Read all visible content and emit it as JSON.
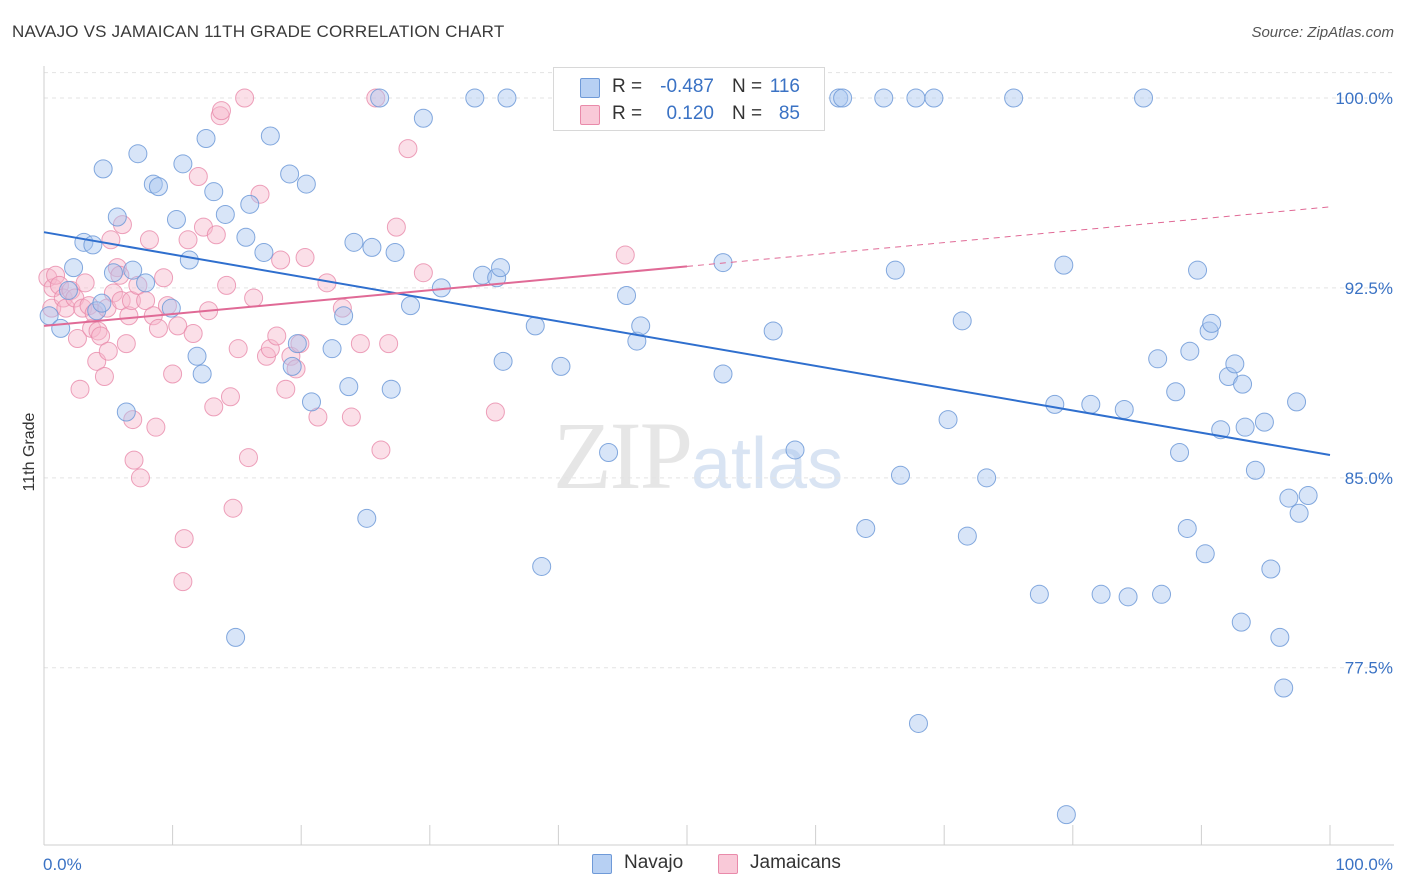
{
  "header": {
    "title": "NAVAJO VS JAMAICAN 11TH GRADE CORRELATION CHART",
    "source": "Source: ZipAtlas.com"
  },
  "watermark": {
    "zip": "ZIP",
    "atlas": "atlas"
  },
  "legend": {
    "navajo": {
      "r_label": "R =",
      "r_value": "-0.487",
      "n_label": "N =",
      "n_value": "116"
    },
    "jamaicans": {
      "r_label": "R =",
      "r_value": "0.120",
      "n_label": "N =",
      "n_value": "85"
    }
  },
  "bottom_legend": {
    "navajo": "Navajo",
    "jamaicans": "Jamaicans"
  },
  "colors": {
    "navajo_fill": "#a9c6f0",
    "navajo_stroke": "#6f9ad8",
    "navajo_line": "#2f6fce",
    "jamaicans_fill": "#f6b8cc",
    "jamaicans_stroke": "#e98aaa",
    "jamaicans_line": "#e06a96",
    "tick_text": "#3a72c4",
    "grid": "#e3e3e3"
  },
  "chart_data": {
    "type": "scatter",
    "title": "NAVAJO VS JAMAICAN 11TH GRADE CORRELATION CHART",
    "xlabel": "",
    "ylabel": "11th Grade",
    "xlim": [
      0,
      100
    ],
    "ylim": [
      70.5,
      101.5
    ],
    "x_tick_labels": [
      "0.0%",
      "100.0%"
    ],
    "y_ticks": [
      77.5,
      85.0,
      92.5,
      100.0
    ],
    "y_tick_labels": [
      "77.5%",
      "85.0%",
      "92.5%",
      "100.0%"
    ],
    "grid": true,
    "legend_position": "top-center",
    "series": [
      {
        "name": "Navajo",
        "r": -0.487,
        "n": 116,
        "trend": {
          "x0": 0,
          "y0": 94.7,
          "x1": 100,
          "y1": 85.9,
          "dashed_from": null
        },
        "points": [
          [
            0.4,
            91.4
          ],
          [
            1.3,
            90.9
          ],
          [
            1.9,
            92.4
          ],
          [
            2.3,
            93.3
          ],
          [
            3.1,
            94.3
          ],
          [
            3.8,
            94.2
          ],
          [
            4.1,
            91.6
          ],
          [
            4.5,
            91.9
          ],
          [
            4.6,
            97.2
          ],
          [
            5.4,
            93.1
          ],
          [
            5.7,
            95.3
          ],
          [
            6.4,
            87.6
          ],
          [
            6.9,
            93.2
          ],
          [
            7.3,
            97.8
          ],
          [
            7.9,
            92.7
          ],
          [
            8.5,
            96.6
          ],
          [
            8.9,
            96.5
          ],
          [
            9.9,
            91.7
          ],
          [
            10.3,
            95.2
          ],
          [
            10.8,
            97.4
          ],
          [
            11.3,
            93.6
          ],
          [
            11.9,
            89.8
          ],
          [
            12.3,
            89.1
          ],
          [
            12.6,
            98.4
          ],
          [
            13.2,
            96.3
          ],
          [
            14.1,
            95.4
          ],
          [
            14.9,
            78.7
          ],
          [
            15.7,
            94.5
          ],
          [
            16.0,
            95.8
          ],
          [
            17.1,
            93.9
          ],
          [
            17.6,
            98.5
          ],
          [
            19.1,
            97.0
          ],
          [
            19.3,
            89.4
          ],
          [
            19.7,
            90.3
          ],
          [
            20.4,
            96.6
          ],
          [
            20.8,
            88.0
          ],
          [
            22.4,
            90.1
          ],
          [
            23.3,
            91.4
          ],
          [
            23.7,
            88.6
          ],
          [
            24.1,
            94.3
          ],
          [
            25.1,
            83.4
          ],
          [
            25.5,
            94.1
          ],
          [
            26.1,
            100.0
          ],
          [
            27.0,
            88.5
          ],
          [
            27.3,
            93.9
          ],
          [
            28.5,
            91.8
          ],
          [
            29.5,
            99.2
          ],
          [
            30.9,
            92.5
          ],
          [
            33.5,
            100.0
          ],
          [
            34.1,
            93.0
          ],
          [
            35.2,
            92.9
          ],
          [
            35.5,
            93.3
          ],
          [
            35.7,
            89.6
          ],
          [
            36.0,
            100.0
          ],
          [
            38.2,
            91.0
          ],
          [
            38.7,
            81.5
          ],
          [
            40.2,
            89.4
          ],
          [
            43.9,
            86.0
          ],
          [
            45.3,
            92.2
          ],
          [
            46.1,
            90.4
          ],
          [
            46.4,
            91.0
          ],
          [
            52.8,
            93.5
          ],
          [
            52.8,
            89.1
          ],
          [
            54.2,
            100.0
          ],
          [
            56.7,
            90.8
          ],
          [
            58.4,
            86.1
          ],
          [
            61.8,
            100.0
          ],
          [
            62.1,
            100.0
          ],
          [
            63.9,
            83.0
          ],
          [
            65.3,
            100.0
          ],
          [
            66.2,
            93.2
          ],
          [
            66.6,
            85.1
          ],
          [
            67.8,
            100.0
          ],
          [
            68.0,
            75.3
          ],
          [
            69.2,
            100.0
          ],
          [
            70.3,
            87.3
          ],
          [
            71.4,
            91.2
          ],
          [
            71.8,
            82.7
          ],
          [
            73.3,
            85.0
          ],
          [
            75.4,
            100.0
          ],
          [
            77.4,
            80.4
          ],
          [
            78.6,
            87.9
          ],
          [
            79.3,
            93.4
          ],
          [
            79.5,
            71.7
          ],
          [
            81.4,
            87.9
          ],
          [
            82.2,
            80.4
          ],
          [
            84.0,
            87.7
          ],
          [
            84.3,
            80.3
          ],
          [
            85.5,
            100.0
          ],
          [
            86.6,
            89.7
          ],
          [
            86.9,
            80.4
          ],
          [
            88.0,
            88.4
          ],
          [
            88.3,
            86.0
          ],
          [
            88.9,
            83.0
          ],
          [
            89.1,
            90.0
          ],
          [
            89.7,
            93.2
          ],
          [
            90.3,
            82.0
          ],
          [
            90.6,
            90.8
          ],
          [
            90.8,
            91.1
          ],
          [
            91.5,
            86.9
          ],
          [
            92.1,
            89.0
          ],
          [
            92.6,
            89.5
          ],
          [
            93.1,
            79.3
          ],
          [
            93.2,
            88.7
          ],
          [
            93.4,
            87.0
          ],
          [
            94.2,
            85.3
          ],
          [
            94.9,
            87.2
          ],
          [
            95.4,
            81.4
          ],
          [
            96.1,
            78.7
          ],
          [
            96.4,
            76.7
          ],
          [
            96.8,
            84.2
          ],
          [
            97.4,
            88.0
          ],
          [
            97.6,
            83.6
          ],
          [
            98.3,
            84.3
          ]
        ]
      },
      {
        "name": "Jamaicans",
        "r": 0.12,
        "n": 85,
        "trend": {
          "x0": 0,
          "y0": 91.0,
          "x1": 100,
          "y1": 95.7,
          "dashed_from": 50
        },
        "points": [
          [
            0.3,
            92.9
          ],
          [
            0.6,
            91.7
          ],
          [
            0.7,
            92.5
          ],
          [
            0.9,
            93.0
          ],
          [
            1.2,
            92.6
          ],
          [
            1.5,
            92.1
          ],
          [
            1.7,
            91.7
          ],
          [
            2.1,
            92.4
          ],
          [
            2.4,
            92.1
          ],
          [
            2.6,
            90.5
          ],
          [
            2.8,
            88.5
          ],
          [
            3.0,
            91.7
          ],
          [
            3.2,
            92.7
          ],
          [
            3.5,
            91.8
          ],
          [
            3.7,
            90.9
          ],
          [
            3.9,
            91.5
          ],
          [
            4.1,
            89.6
          ],
          [
            4.2,
            90.8
          ],
          [
            4.4,
            90.6
          ],
          [
            4.7,
            89.0
          ],
          [
            4.9,
            91.7
          ],
          [
            5.0,
            90.0
          ],
          [
            5.2,
            94.4
          ],
          [
            5.4,
            92.3
          ],
          [
            5.7,
            93.3
          ],
          [
            5.9,
            93.0
          ],
          [
            6.0,
            92.0
          ],
          [
            6.1,
            95.0
          ],
          [
            6.4,
            90.3
          ],
          [
            6.6,
            91.4
          ],
          [
            6.8,
            92.0
          ],
          [
            6.9,
            87.3
          ],
          [
            7.0,
            85.7
          ],
          [
            7.3,
            92.6
          ],
          [
            7.5,
            85.0
          ],
          [
            7.9,
            92.0
          ],
          [
            8.2,
            94.4
          ],
          [
            8.5,
            91.4
          ],
          [
            8.7,
            87.0
          ],
          [
            8.9,
            90.9
          ],
          [
            9.3,
            92.9
          ],
          [
            9.6,
            91.8
          ],
          [
            10.0,
            89.1
          ],
          [
            10.4,
            91.0
          ],
          [
            10.8,
            80.9
          ],
          [
            10.9,
            82.6
          ],
          [
            11.2,
            94.4
          ],
          [
            11.6,
            90.7
          ],
          [
            12.0,
            96.9
          ],
          [
            12.4,
            94.9
          ],
          [
            12.8,
            91.6
          ],
          [
            13.2,
            87.8
          ],
          [
            13.4,
            94.6
          ],
          [
            13.7,
            99.3
          ],
          [
            14.2,
            92.6
          ],
          [
            14.5,
            88.2
          ],
          [
            14.7,
            83.8
          ],
          [
            15.1,
            90.1
          ],
          [
            15.6,
            100.0
          ],
          [
            15.9,
            85.8
          ],
          [
            16.3,
            92.1
          ],
          [
            16.8,
            96.2
          ],
          [
            17.3,
            89.8
          ],
          [
            17.6,
            90.1
          ],
          [
            18.1,
            90.6
          ],
          [
            18.4,
            93.6
          ],
          [
            18.8,
            88.5
          ],
          [
            19.2,
            89.8
          ],
          [
            19.6,
            89.3
          ],
          [
            19.9,
            90.3
          ],
          [
            20.3,
            93.7
          ],
          [
            21.3,
            87.4
          ],
          [
            22.0,
            92.7
          ],
          [
            23.2,
            91.7
          ],
          [
            23.9,
            87.4
          ],
          [
            24.6,
            90.3
          ],
          [
            25.8,
            100.0
          ],
          [
            26.2,
            86.1
          ],
          [
            26.8,
            90.3
          ],
          [
            27.4,
            94.9
          ],
          [
            28.3,
            98.0
          ],
          [
            29.5,
            93.1
          ],
          [
            35.1,
            87.6
          ],
          [
            45.2,
            93.8
          ],
          [
            13.8,
            99.5
          ]
        ]
      }
    ]
  }
}
